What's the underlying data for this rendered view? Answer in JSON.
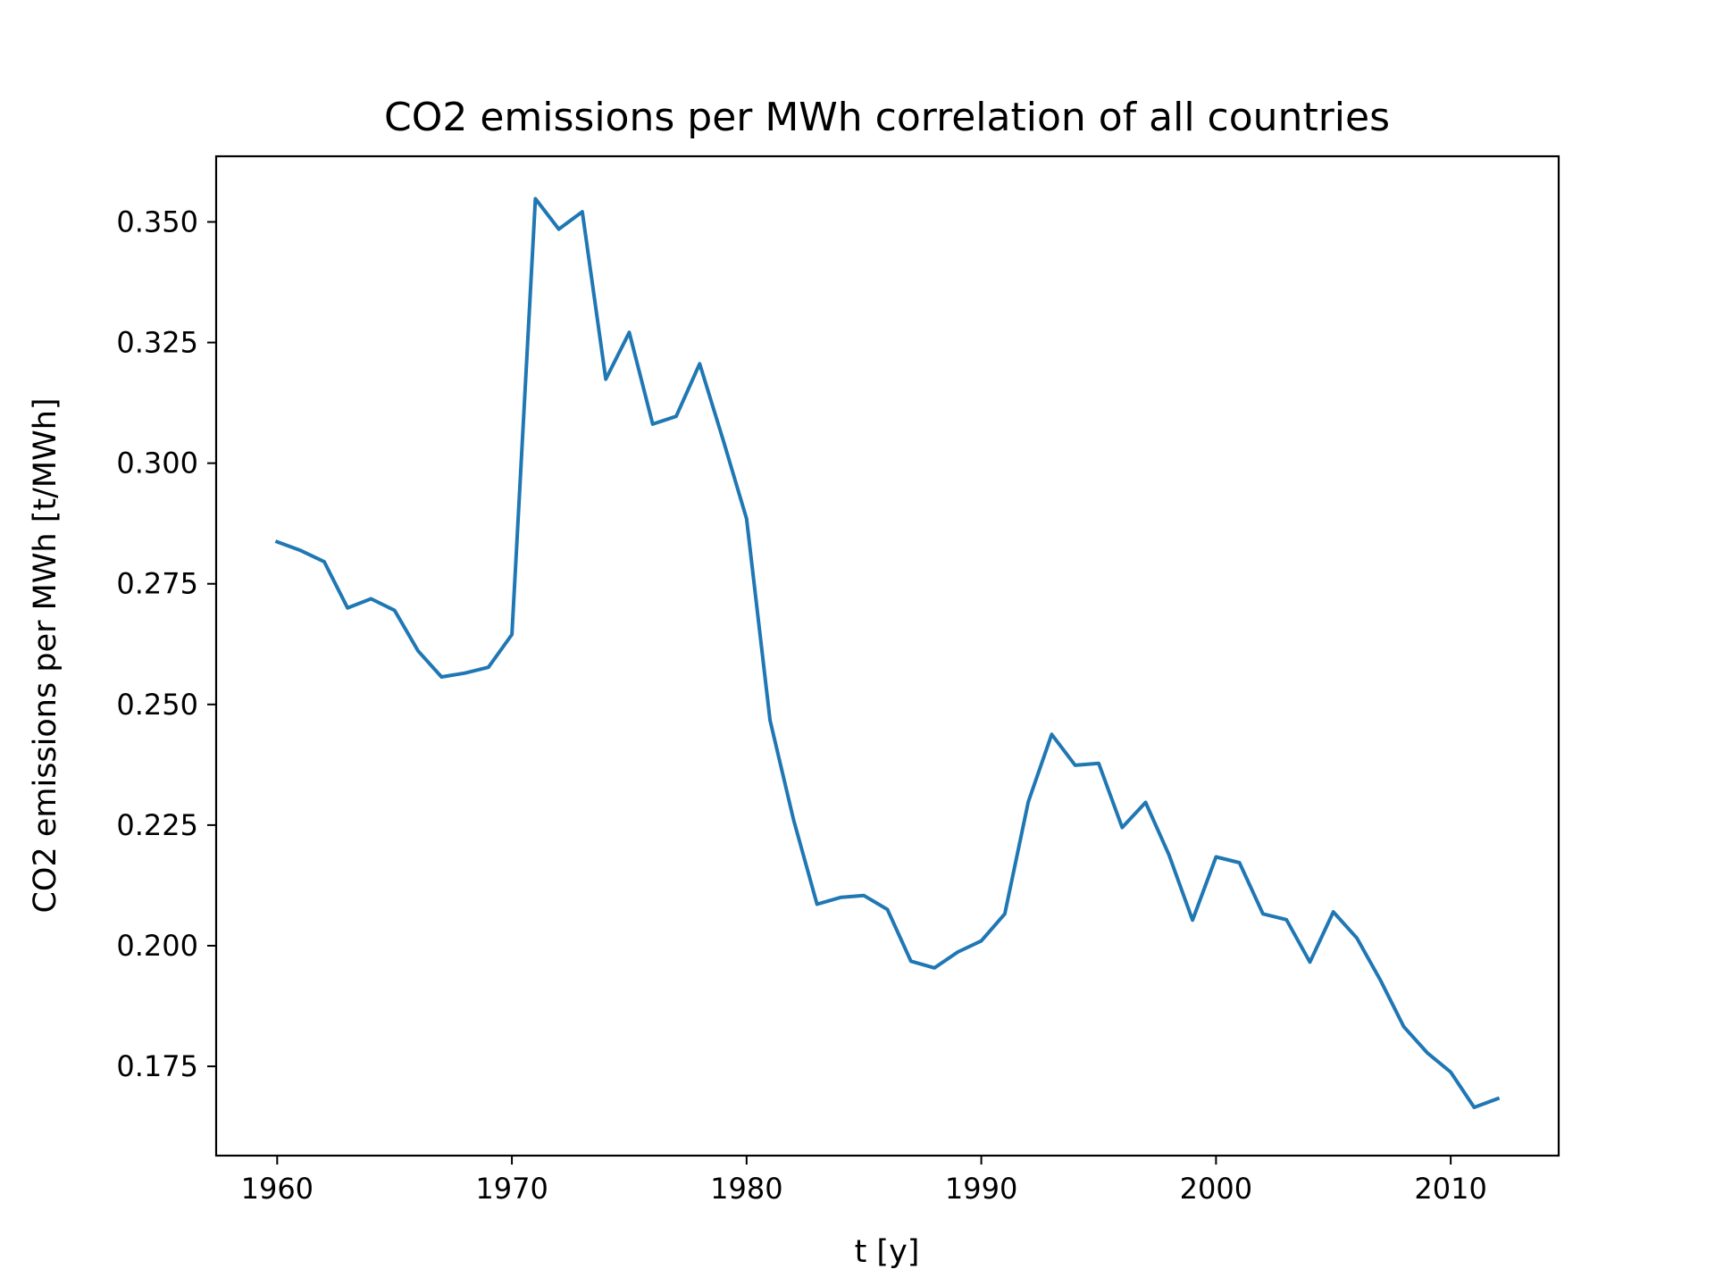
{
  "chart_data": {
    "type": "line",
    "title": "CO2 emissions per MWh correlation of all countries",
    "xlabel": "t [y]",
    "ylabel": "CO2 emissions per MWh [t/MWh]",
    "xlim": [
      1957.4,
      2014.6
    ],
    "ylim": [
      0.1565,
      0.3636
    ],
    "xticks": [
      1960,
      1970,
      1980,
      1990,
      2000,
      2010
    ],
    "yticks": [
      0.175,
      0.2,
      0.225,
      0.25,
      0.275,
      0.3,
      0.325,
      0.35
    ],
    "ytick_labels": [
      "0.175",
      "0.200",
      "0.225",
      "0.250",
      "0.275",
      "0.300",
      "0.325",
      "0.350"
    ],
    "grid": false,
    "line_color": "#1f77b4",
    "x": [
      1960,
      1961,
      1962,
      1963,
      1964,
      1965,
      1966,
      1967,
      1968,
      1969,
      1970,
      1971,
      1972,
      1973,
      1974,
      1975,
      1976,
      1977,
      1978,
      1979,
      1980,
      1981,
      1982,
      1983,
      1984,
      1985,
      1986,
      1987,
      1988,
      1989,
      1990,
      1991,
      1992,
      1993,
      1994,
      1995,
      1996,
      1997,
      1998,
      1999,
      2000,
      2001,
      2002,
      2003,
      2004,
      2005,
      2006,
      2007,
      2008,
      2009,
      2010,
      2011,
      2012
    ],
    "values": [
      0.2837,
      0.2819,
      0.2796,
      0.27,
      0.2719,
      0.2695,
      0.2611,
      0.2557,
      0.2565,
      0.2577,
      0.2645,
      0.3548,
      0.3485,
      0.3521,
      0.3174,
      0.3271,
      0.3081,
      0.3097,
      0.3206,
      0.3048,
      0.2885,
      0.2467,
      0.2261,
      0.2086,
      0.21,
      0.2104,
      0.2075,
      0.1968,
      0.1954,
      0.1987,
      0.201,
      0.2066,
      0.2298,
      0.2438,
      0.2374,
      0.2378,
      0.2245,
      0.2297,
      0.2188,
      0.2053,
      0.2184,
      0.2172,
      0.2066,
      0.2054,
      0.1966,
      0.207,
      0.2016,
      0.1929,
      0.1832,
      0.1778,
      0.1738,
      0.1665,
      0.1683
    ]
  }
}
